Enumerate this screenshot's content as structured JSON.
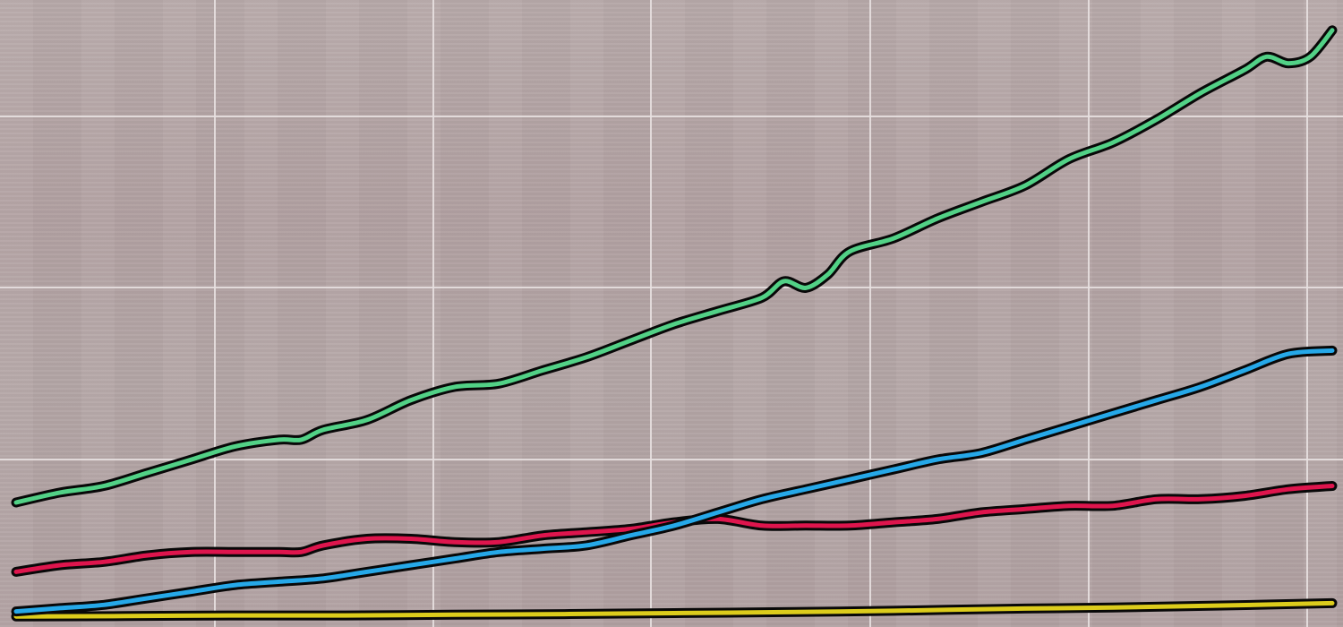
{
  "colors": {
    "background": "#b7a7a8",
    "grid": "#e8e1e1",
    "outline": "#080808"
  },
  "chart_data": {
    "type": "line",
    "title": "",
    "xlabel": "",
    "ylabel": "",
    "xlim": [
      0,
      60
    ],
    "ylim": [
      0,
      18.5
    ],
    "grid": true,
    "legend": "none",
    "series": [
      {
        "color": "#52d186",
        "points": [
          [
            0,
            3.5
          ],
          [
            2,
            3.8
          ],
          [
            4,
            4.0
          ],
          [
            6,
            4.4
          ],
          [
            8,
            4.8
          ],
          [
            10,
            5.2
          ],
          [
            12,
            5.4
          ],
          [
            13,
            5.4
          ],
          [
            14,
            5.7
          ],
          [
            16,
            6.0
          ],
          [
            18,
            6.6
          ],
          [
            20,
            7.0
          ],
          [
            22,
            7.1
          ],
          [
            24,
            7.5
          ],
          [
            26,
            7.9
          ],
          [
            28,
            8.4
          ],
          [
            30,
            8.9
          ],
          [
            32,
            9.3
          ],
          [
            34,
            9.7
          ],
          [
            35,
            10.2
          ],
          [
            36,
            10.0
          ],
          [
            37,
            10.4
          ],
          [
            38,
            11.1
          ],
          [
            40,
            11.5
          ],
          [
            42,
            12.1
          ],
          [
            44,
            12.6
          ],
          [
            46,
            13.1
          ],
          [
            48,
            13.9
          ],
          [
            50,
            14.4
          ],
          [
            52,
            15.1
          ],
          [
            54,
            15.9
          ],
          [
            56,
            16.6
          ],
          [
            57,
            17.0
          ],
          [
            58,
            16.8
          ],
          [
            59,
            17.0
          ],
          [
            60,
            17.8
          ]
        ]
      },
      {
        "color": "#de154d",
        "points": [
          [
            0,
            1.4
          ],
          [
            2,
            1.6
          ],
          [
            4,
            1.7
          ],
          [
            6,
            1.9
          ],
          [
            8,
            2.0
          ],
          [
            10,
            2.0
          ],
          [
            12,
            2.0
          ],
          [
            13,
            2.0
          ],
          [
            14,
            2.2
          ],
          [
            16,
            2.4
          ],
          [
            18,
            2.4
          ],
          [
            20,
            2.3
          ],
          [
            22,
            2.3
          ],
          [
            24,
            2.5
          ],
          [
            26,
            2.6
          ],
          [
            28,
            2.7
          ],
          [
            30,
            2.9
          ],
          [
            32,
            3.0
          ],
          [
            34,
            2.8
          ],
          [
            36,
            2.8
          ],
          [
            38,
            2.8
          ],
          [
            40,
            2.9
          ],
          [
            42,
            3.0
          ],
          [
            44,
            3.2
          ],
          [
            46,
            3.3
          ],
          [
            48,
            3.4
          ],
          [
            50,
            3.4
          ],
          [
            52,
            3.6
          ],
          [
            54,
            3.6
          ],
          [
            56,
            3.7
          ],
          [
            58,
            3.9
          ],
          [
            60,
            4.0
          ]
        ]
      },
      {
        "color": "#26a8e8",
        "points": [
          [
            0,
            0.2
          ],
          [
            2,
            0.3
          ],
          [
            4,
            0.4
          ],
          [
            6,
            0.6
          ],
          [
            8,
            0.8
          ],
          [
            10,
            1.0
          ],
          [
            12,
            1.1
          ],
          [
            14,
            1.2
          ],
          [
            16,
            1.4
          ],
          [
            18,
            1.6
          ],
          [
            20,
            1.8
          ],
          [
            22,
            2.0
          ],
          [
            24,
            2.1
          ],
          [
            26,
            2.2
          ],
          [
            28,
            2.5
          ],
          [
            30,
            2.8
          ],
          [
            32,
            3.2
          ],
          [
            34,
            3.6
          ],
          [
            36,
            3.9
          ],
          [
            38,
            4.2
          ],
          [
            40,
            4.5
          ],
          [
            42,
            4.8
          ],
          [
            44,
            5.0
          ],
          [
            46,
            5.4
          ],
          [
            48,
            5.8
          ],
          [
            50,
            6.2
          ],
          [
            52,
            6.6
          ],
          [
            54,
            7.0
          ],
          [
            56,
            7.5
          ],
          [
            58,
            8.0
          ],
          [
            60,
            8.1
          ]
        ]
      },
      {
        "color": "#dccc1c",
        "points": [
          [
            0,
            0.05
          ],
          [
            5,
            0.06
          ],
          [
            10,
            0.08
          ],
          [
            15,
            0.08
          ],
          [
            20,
            0.1
          ],
          [
            25,
            0.12
          ],
          [
            30,
            0.15
          ],
          [
            35,
            0.18
          ],
          [
            40,
            0.22
          ],
          [
            45,
            0.28
          ],
          [
            50,
            0.32
          ],
          [
            55,
            0.38
          ],
          [
            60,
            0.45
          ]
        ]
      }
    ]
  }
}
